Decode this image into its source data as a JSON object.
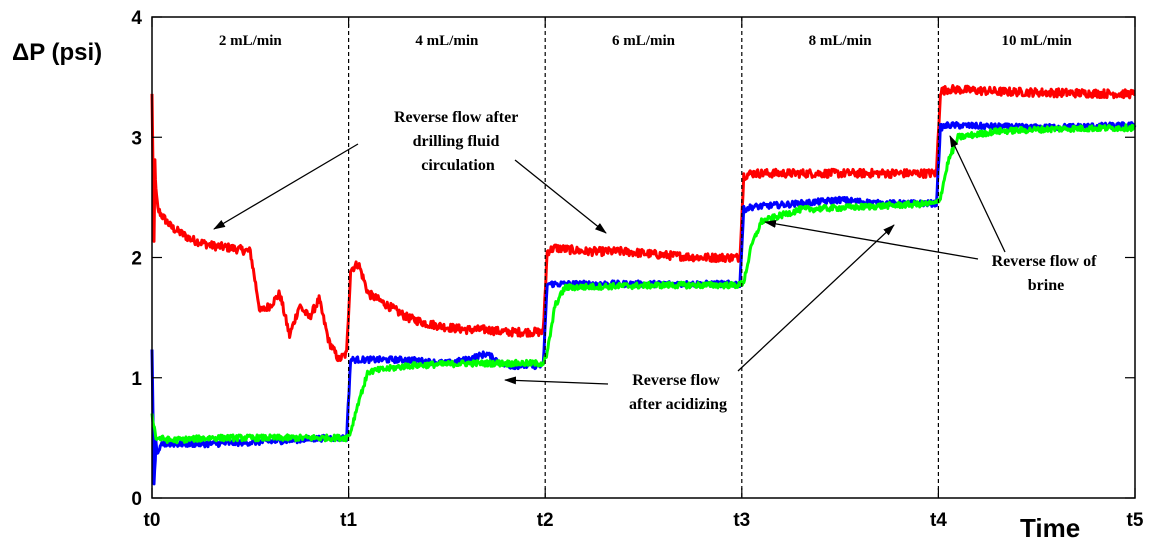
{
  "chart_data": {
    "type": "line",
    "title": "",
    "xlabel": "Time",
    "ylabel": "ΔP (psi)",
    "ylim": [
      0,
      4
    ],
    "yticks": [
      "0",
      "1",
      "2",
      "3",
      "4"
    ],
    "x_ticks": [
      "t0",
      "t1",
      "t2",
      "t3",
      "t4",
      "t5"
    ],
    "xlim": [
      0,
      5
    ],
    "grid": false,
    "segments": [
      {
        "label": "2 mL/min",
        "x_from": 0,
        "x_to": 1
      },
      {
        "label": "4 mL/min",
        "x_from": 1,
        "x_to": 2
      },
      {
        "label": "6 mL/min",
        "x_from": 2,
        "x_to": 3
      },
      {
        "label": "8 mL/min",
        "x_from": 3,
        "x_to": 4
      },
      {
        "label": "10 mL/min",
        "x_from": 4,
        "x_to": 5
      }
    ],
    "series": [
      {
        "key": "drilling",
        "color": "#ff0000",
        "noise": 0.035,
        "x": [
          0.0,
          0.01,
          0.015,
          0.02,
          0.03,
          0.05,
          0.1,
          0.2,
          0.3,
          0.4,
          0.5,
          0.55,
          0.6,
          0.65,
          0.7,
          0.75,
          0.8,
          0.85,
          0.9,
          0.95,
          0.99,
          1.01,
          1.05,
          1.1,
          1.2,
          1.3,
          1.4,
          1.5,
          1.6,
          1.7,
          1.8,
          1.99,
          2.01,
          2.05,
          2.2,
          2.4,
          2.6,
          2.8,
          2.99,
          3.01,
          3.05,
          3.3,
          3.6,
          3.99,
          4.01,
          4.05,
          4.3,
          4.6,
          5.0
        ],
        "y": [
          3.35,
          2.1,
          2.8,
          2.55,
          2.4,
          2.35,
          2.25,
          2.15,
          2.1,
          2.08,
          2.05,
          1.55,
          1.6,
          1.7,
          1.35,
          1.6,
          1.5,
          1.65,
          1.3,
          1.15,
          1.2,
          1.9,
          1.95,
          1.7,
          1.6,
          1.5,
          1.45,
          1.42,
          1.4,
          1.4,
          1.38,
          1.38,
          2.05,
          2.08,
          2.05,
          2.05,
          2.02,
          2.0,
          2.0,
          2.68,
          2.7,
          2.7,
          2.7,
          2.7,
          3.38,
          3.4,
          3.38,
          3.37,
          3.36
        ]
      },
      {
        "key": "acidizing",
        "color": "#0000ff",
        "noise": 0.025,
        "x": [
          0.0,
          0.01,
          0.02,
          0.03,
          0.05,
          0.1,
          0.3,
          0.6,
          0.9,
          0.99,
          1.01,
          1.05,
          1.3,
          1.5,
          1.6,
          1.7,
          1.8,
          1.99,
          2.01,
          2.05,
          2.3,
          2.6,
          2.99,
          3.01,
          3.05,
          3.3,
          3.5,
          3.7,
          3.99,
          4.01,
          4.05,
          4.5,
          5.0
        ],
        "y": [
          1.25,
          0.1,
          0.45,
          0.35,
          0.45,
          0.45,
          0.45,
          0.47,
          0.5,
          0.5,
          1.15,
          1.15,
          1.15,
          1.12,
          1.15,
          1.2,
          1.1,
          1.1,
          1.78,
          1.78,
          1.78,
          1.78,
          1.78,
          2.4,
          2.42,
          2.45,
          2.48,
          2.45,
          2.45,
          3.08,
          3.1,
          3.08,
          3.1
        ]
      },
      {
        "key": "brine",
        "color": "#00ff00",
        "noise": 0.025,
        "x": [
          0.0,
          0.02,
          0.1,
          0.3,
          0.6,
          0.9,
          0.99,
          1.01,
          1.05,
          1.1,
          1.3,
          1.6,
          1.99,
          2.01,
          2.05,
          2.1,
          2.3,
          2.6,
          2.99,
          3.01,
          3.05,
          3.1,
          3.3,
          3.6,
          3.99,
          4.01,
          4.05,
          4.1,
          4.3,
          4.6,
          5.0
        ],
        "y": [
          0.7,
          0.5,
          0.48,
          0.5,
          0.5,
          0.5,
          0.5,
          0.55,
          0.8,
          1.05,
          1.1,
          1.12,
          1.12,
          1.2,
          1.6,
          1.75,
          1.76,
          1.77,
          1.77,
          1.8,
          2.1,
          2.3,
          2.4,
          2.42,
          2.45,
          2.5,
          2.8,
          3.0,
          3.05,
          3.07,
          3.08
        ]
      }
    ],
    "annotations": [
      {
        "lines": [
          "Reverse flow after",
          "drilling fluid",
          "circulation"
        ]
      },
      {
        "lines": [
          "Reverse flow",
          "after acidizing"
        ]
      },
      {
        "lines": [
          "Reverse flow of",
          "brine"
        ]
      }
    ]
  }
}
